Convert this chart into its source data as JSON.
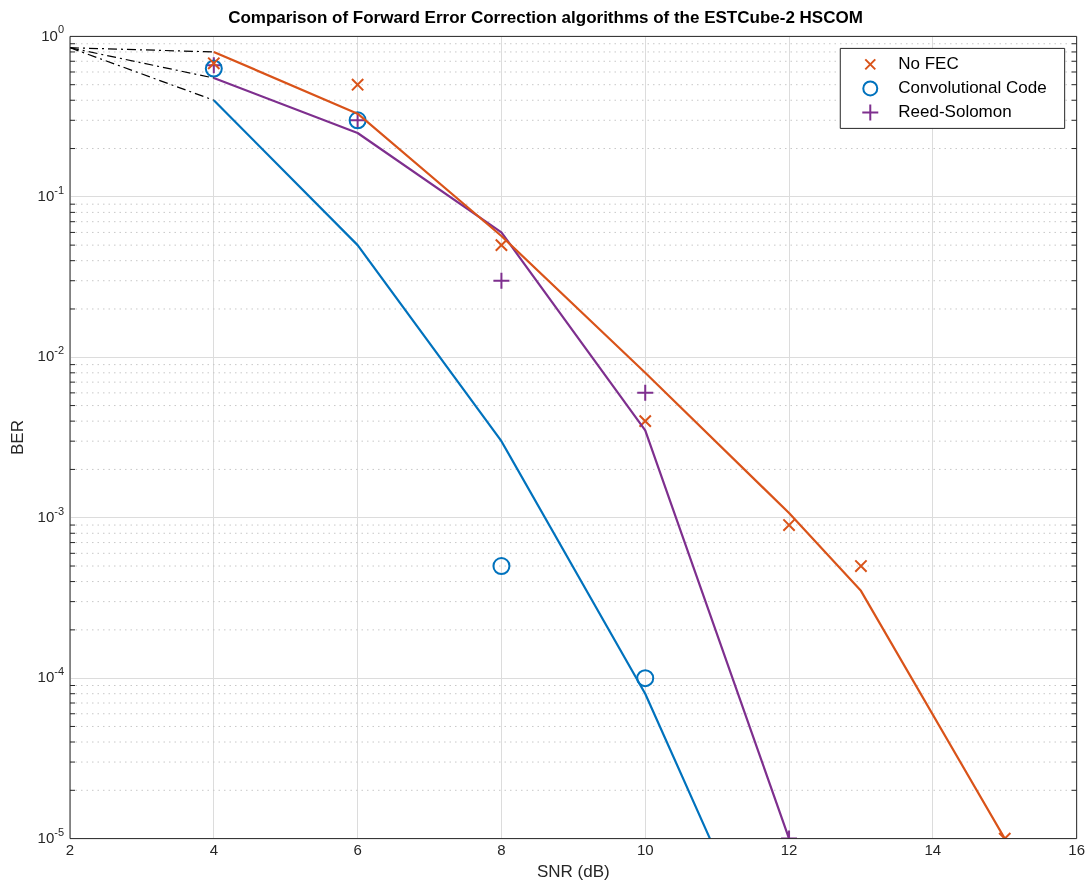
{
  "chart_data": {
    "type": "line",
    "title": "Comparison of Forward Error Correction algorithms of the ESTCube-2 HSCOM",
    "xlabel": "SNR (dB)",
    "ylabel": "BER",
    "log": "y",
    "grid": true,
    "legend": "top right",
    "xlim": [
      2,
      16
    ],
    "xticks": [
      2,
      4,
      6,
      8,
      10,
      12,
      14,
      16
    ],
    "ylim": [
      1e-05,
      1
    ],
    "yticks": [
      {
        "value": 1e-05,
        "label": "10$^{-5}$"
      },
      {
        "value": 0.0001,
        "label": "10$^{-4}$"
      },
      {
        "value": 0.001,
        "label": "10$^{-3}$"
      },
      {
        "value": 0.01,
        "label": "10$^{-2}$"
      },
      {
        "value": 0.1,
        "label": "10$^{-1}$"
      },
      {
        "value": 1,
        "label": "10$^{0}$"
      }
    ],
    "series": [
      {
        "type": "line",
        "color": "#d95319",
        "line_style": "solid",
        "marker": "none",
        "x": [
          4,
          6,
          8,
          10,
          12,
          13,
          15
        ],
        "values": [
          0.8,
          0.33,
          0.057,
          0.008,
          0.00107,
          0.00035,
          1e-05
        ]
      },
      {
        "type": "line",
        "color": "#0072bd",
        "line_style": "solid",
        "marker": "none",
        "x": [
          4,
          6,
          8,
          10,
          10.9
        ],
        "values": [
          0.4,
          0.05,
          0.003,
          8e-05,
          1e-05
        ]
      },
      {
        "type": "line",
        "color": "#7e2f8e",
        "line_style": "solid",
        "marker": "none",
        "x": [
          4,
          6,
          8,
          10,
          12
        ],
        "values": [
          0.55,
          0.25,
          0.06,
          0.0035,
          1e-05
        ]
      },
      {
        "type": "line",
        "color": "#000000",
        "line_style": "dashed",
        "marker": "none",
        "x": [
          2,
          4
        ],
        "values": [
          0.85,
          0.8
        ]
      },
      {
        "type": "line",
        "color": "#000000",
        "line_style": "dashed",
        "marker": "none",
        "x": [
          2,
          4
        ],
        "values": [
          0.85,
          0.55
        ]
      },
      {
        "type": "line",
        "color": "#000000",
        "line_style": "dashed",
        "marker": "none",
        "x": [
          2,
          4
        ],
        "values": [
          0.85,
          0.4
        ]
      },
      {
        "type": "scatter",
        "name": "No FEC",
        "color": "#d95319",
        "marker": "cross",
        "x": [
          4,
          6,
          8,
          10,
          12,
          13,
          15
        ],
        "values": [
          0.68,
          0.5,
          0.05,
          0.004,
          0.0009,
          0.0005,
          1e-05
        ]
      },
      {
        "type": "scatter",
        "name": "Convolutional Code",
        "color": "#0072bd",
        "marker": "circle",
        "x": [
          4,
          6,
          8,
          10
        ],
        "values": [
          0.63,
          0.3,
          0.0005,
          0.0001
        ]
      },
      {
        "type": "scatter",
        "name": "Reed-Solomon",
        "color": "#7e2f8e",
        "marker": "plus",
        "x": [
          4,
          6,
          8,
          10,
          12
        ],
        "values": [
          0.66,
          0.3,
          0.03,
          0.006,
          1e-05
        ]
      }
    ]
  }
}
